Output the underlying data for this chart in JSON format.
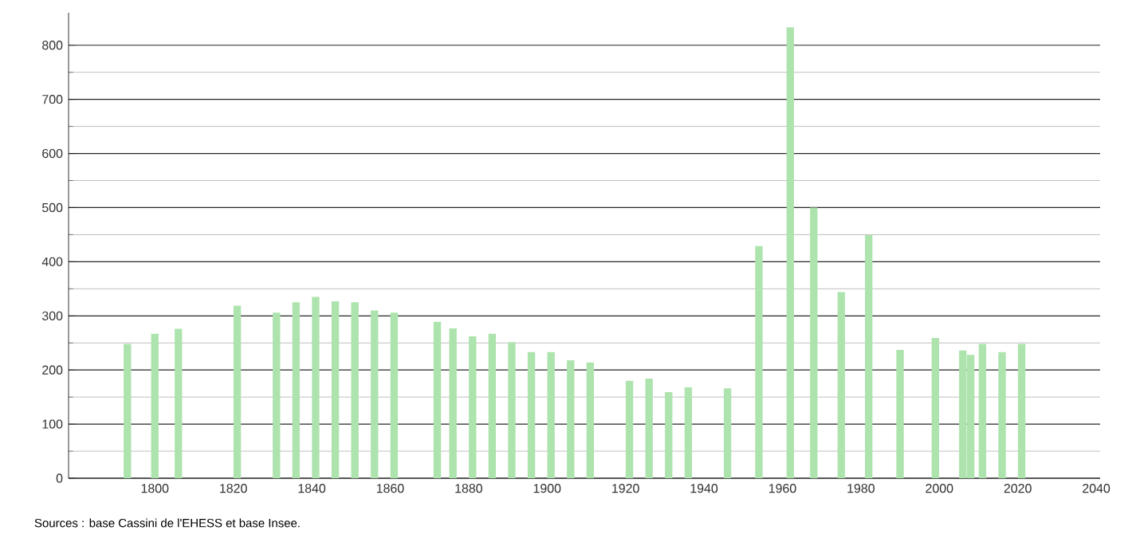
{
  "chart_data": {
    "type": "bar",
    "x": [
      1793,
      1800,
      1806,
      1821,
      1831,
      1836,
      1841,
      1846,
      1851,
      1856,
      1861,
      1872,
      1876,
      1881,
      1886,
      1891,
      1896,
      1901,
      1906,
      1911,
      1921,
      1926,
      1931,
      1936,
      1946,
      1954,
      1962,
      1968,
      1975,
      1982,
      1990,
      1999,
      2006,
      2008,
      2011,
      2016,
      2021
    ],
    "values": [
      248,
      267,
      276,
      319,
      306,
      325,
      335,
      327,
      325,
      310,
      306,
      289,
      277,
      262,
      267,
      251,
      233,
      233,
      218,
      214,
      180,
      184,
      159,
      168,
      166,
      429,
      833,
      500,
      344,
      449,
      237,
      259,
      236,
      228,
      248,
      233,
      248
    ],
    "color": "#ade3ad",
    "xlim": [
      1778,
      2041
    ],
    "ylim": [
      0,
      860
    ],
    "xticks": [
      1800,
      1820,
      1840,
      1860,
      1880,
      1900,
      1920,
      1940,
      1960,
      1980,
      2000,
      2020,
      2040
    ],
    "yticks": [
      0,
      100,
      200,
      300,
      400,
      500,
      600,
      700,
      800
    ],
    "grid": "y",
    "annotations": [
      "Sources : base Cassini de l'EHESS et base Insee."
    ]
  }
}
